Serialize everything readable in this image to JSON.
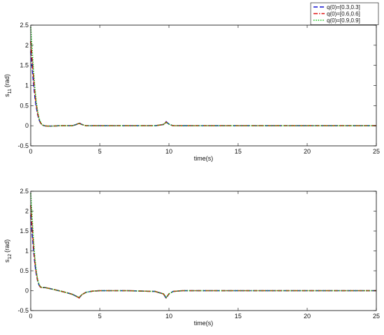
{
  "chart_data": [
    {
      "type": "line",
      "xlabel": "time(s)",
      "ylabel": "s",
      "ylabel_sub": "11",
      "ylabel_unit": "(rad)",
      "xlim": [
        0,
        25
      ],
      "ylim": [
        -0.5,
        2.5
      ],
      "xticks": [
        "0",
        "5",
        "10",
        "15",
        "20",
        "25"
      ],
      "yticks": [
        "-0.5",
        "0",
        "0.5",
        "1",
        "1.5",
        "2",
        "2.5"
      ],
      "legend": {
        "placement": "top-right",
        "entries": [
          "q(0)=[0.3,0.3]",
          "q(0)=[0.6,0.6]",
          "q(0)=[0.9,0.9]"
        ]
      },
      "series": [
        {
          "name": "q(0)=[0.3,0.3]",
          "color": "#1010d0",
          "style": "dashed",
          "x": [
            0,
            0.1,
            0.2,
            0.3,
            0.4,
            0.5,
            0.6,
            0.7,
            0.8,
            0.9,
            1.0,
            1.2,
            1.5,
            2.0,
            3.0,
            3.3,
            3.5,
            3.7,
            4.0,
            5.0,
            9.0,
            9.6,
            9.8,
            10.0,
            10.3,
            11.0,
            15.0,
            20.0,
            25.0
          ],
          "y": [
            1.85,
            1.45,
            1.05,
            0.72,
            0.47,
            0.28,
            0.15,
            0.07,
            0.03,
            0.01,
            0.0,
            -0.01,
            -0.01,
            0.0,
            0.0,
            0.03,
            0.07,
            0.03,
            0.0,
            0.0,
            0.0,
            0.03,
            0.1,
            0.04,
            0.0,
            0.0,
            0.0,
            0.0,
            0.0
          ]
        },
        {
          "name": "q(0)=[0.6,0.6]",
          "color": "#e01010",
          "style": "dashdot",
          "x": [
            0,
            0.1,
            0.2,
            0.3,
            0.4,
            0.5,
            0.6,
            0.7,
            0.8,
            0.9,
            1.0,
            1.2,
            1.5,
            2.0,
            3.0,
            3.3,
            3.5,
            3.7,
            4.0,
            5.0,
            9.0,
            9.6,
            9.8,
            10.0,
            10.3,
            11.0,
            15.0,
            20.0,
            25.0
          ],
          "y": [
            2.1,
            1.65,
            1.2,
            0.82,
            0.53,
            0.31,
            0.17,
            0.08,
            0.03,
            0.01,
            0.0,
            -0.01,
            -0.01,
            0.0,
            0.0,
            0.03,
            0.06,
            0.03,
            0.0,
            0.0,
            0.0,
            0.03,
            0.09,
            0.04,
            0.0,
            0.0,
            0.0,
            0.0,
            0.0
          ]
        },
        {
          "name": "q(0)=[0.9,0.9]",
          "color": "#10c010",
          "style": "dotted",
          "x": [
            0,
            0.1,
            0.2,
            0.3,
            0.4,
            0.5,
            0.6,
            0.7,
            0.8,
            0.9,
            1.0,
            1.2,
            1.5,
            2.0,
            3.0,
            3.3,
            3.5,
            3.7,
            4.0,
            5.0,
            9.0,
            9.6,
            9.8,
            10.0,
            10.3,
            11.0,
            15.0,
            20.0,
            25.0
          ],
          "y": [
            2.45,
            1.9,
            1.38,
            0.95,
            0.6,
            0.35,
            0.19,
            0.09,
            0.04,
            0.01,
            0.0,
            -0.01,
            -0.01,
            0.0,
            0.0,
            0.03,
            0.06,
            0.03,
            0.0,
            0.0,
            0.0,
            0.03,
            0.09,
            0.04,
            0.0,
            0.0,
            0.0,
            0.0,
            0.0
          ]
        }
      ]
    },
    {
      "type": "line",
      "xlabel": "time(s)",
      "ylabel": "s",
      "ylabel_sub": "12",
      "ylabel_unit": "(rad)",
      "xlim": [
        0,
        25
      ],
      "ylim": [
        -0.5,
        2.5
      ],
      "xticks": [
        "0",
        "5",
        "10",
        "15",
        "20",
        "25"
      ],
      "yticks": [
        "-0.5",
        "0",
        "0.5",
        "1",
        "1.5",
        "2",
        "2.5"
      ],
      "series": [
        {
          "name": "q(0)=[0.3,0.3]",
          "color": "#1010d0",
          "style": "dashed",
          "x": [
            0,
            0.1,
            0.2,
            0.3,
            0.4,
            0.5,
            0.6,
            0.7,
            0.8,
            1.0,
            1.3,
            1.8,
            2.5,
            3.0,
            3.3,
            3.5,
            3.7,
            4.0,
            4.5,
            5.0,
            7.0,
            9.0,
            9.6,
            9.8,
            10.0,
            10.3,
            11.0,
            15.0,
            20.0,
            25.0
          ],
          "y": [
            1.9,
            1.45,
            1.02,
            0.68,
            0.42,
            0.25,
            0.14,
            0.09,
            0.08,
            0.08,
            0.06,
            0.02,
            -0.04,
            -0.09,
            -0.14,
            -0.18,
            -0.1,
            -0.04,
            -0.01,
            0.0,
            0.0,
            -0.02,
            -0.08,
            -0.19,
            -0.08,
            -0.02,
            0.0,
            0.0,
            0.0,
            0.0
          ]
        },
        {
          "name": "q(0)=[0.6,0.6]",
          "color": "#e01010",
          "style": "dashdot",
          "x": [
            0,
            0.1,
            0.2,
            0.3,
            0.4,
            0.5,
            0.6,
            0.7,
            0.8,
            1.0,
            1.3,
            1.8,
            2.5,
            3.0,
            3.3,
            3.5,
            3.7,
            4.0,
            4.5,
            5.0,
            7.0,
            9.0,
            9.6,
            9.8,
            10.0,
            10.3,
            11.0,
            15.0,
            20.0,
            25.0
          ],
          "y": [
            2.15,
            1.62,
            1.13,
            0.74,
            0.45,
            0.26,
            0.15,
            0.09,
            0.08,
            0.08,
            0.06,
            0.02,
            -0.04,
            -0.09,
            -0.14,
            -0.18,
            -0.1,
            -0.04,
            -0.01,
            0.0,
            0.0,
            -0.02,
            -0.08,
            -0.18,
            -0.08,
            -0.02,
            0.0,
            0.0,
            0.0,
            0.0
          ]
        },
        {
          "name": "q(0)=[0.9,0.9]",
          "color": "#10c010",
          "style": "dotted",
          "x": [
            0,
            0.1,
            0.2,
            0.3,
            0.4,
            0.5,
            0.6,
            0.7,
            0.8,
            1.0,
            1.3,
            1.8,
            2.5,
            3.0,
            3.3,
            3.5,
            3.7,
            4.0,
            4.5,
            5.0,
            7.0,
            9.0,
            9.6,
            9.8,
            10.0,
            10.3,
            11.0,
            15.0,
            20.0,
            25.0
          ],
          "y": [
            2.45,
            1.85,
            1.28,
            0.83,
            0.5,
            0.28,
            0.16,
            0.1,
            0.08,
            0.08,
            0.06,
            0.02,
            -0.04,
            -0.09,
            -0.14,
            -0.17,
            -0.1,
            -0.04,
            -0.01,
            0.0,
            0.0,
            -0.02,
            -0.08,
            -0.17,
            -0.08,
            -0.02,
            0.0,
            0.0,
            0.0,
            0.0
          ]
        }
      ]
    }
  ]
}
